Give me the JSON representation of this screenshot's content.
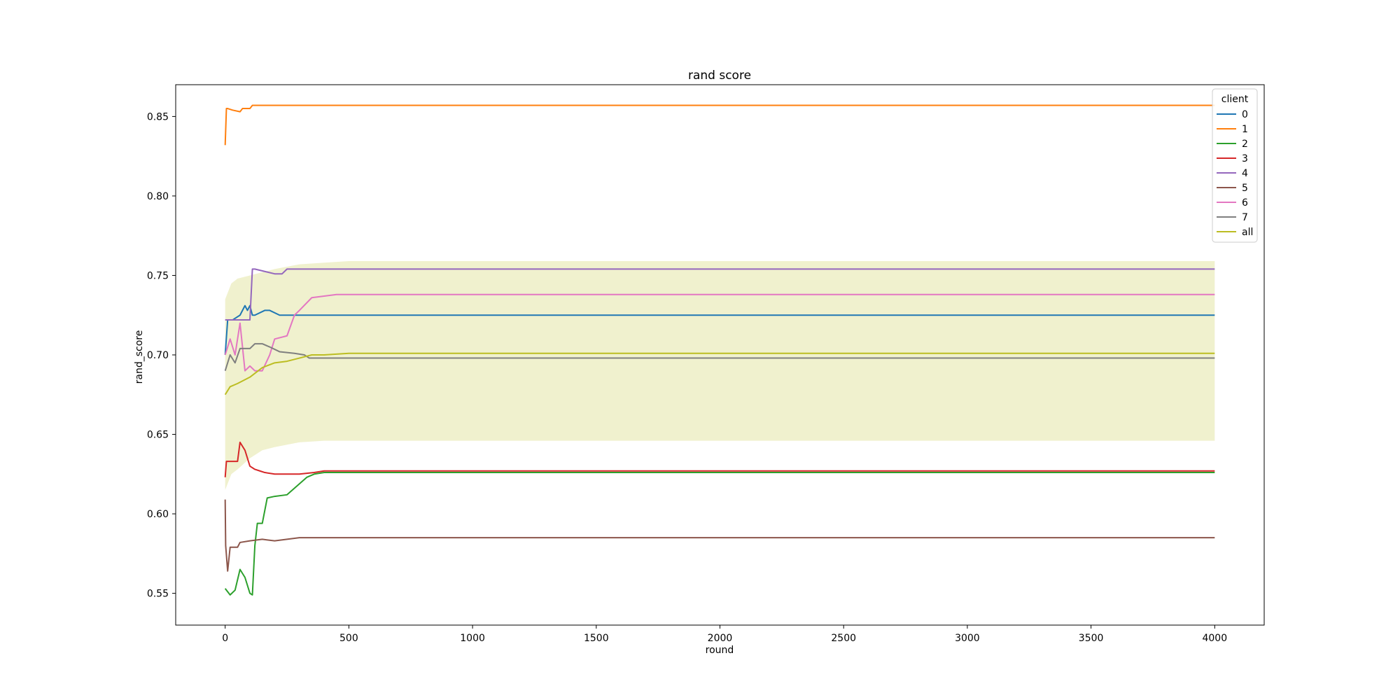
{
  "chart_data": {
    "type": "line",
    "title": "rand score",
    "xlabel": "round",
    "ylabel": "rand_score",
    "xlim": [
      -200,
      4200
    ],
    "ylim": [
      0.53,
      0.87
    ],
    "xticks": [
      0,
      500,
      1000,
      1500,
      2000,
      2500,
      3000,
      3500,
      4000
    ],
    "xtick_labels": [
      "0",
      "500",
      "1000",
      "1500",
      "2000",
      "2500",
      "3000",
      "3500",
      "4000"
    ],
    "yticks": [
      0.55,
      0.6,
      0.65,
      0.7,
      0.75,
      0.8,
      0.85
    ],
    "ytick_labels": [
      "0.55",
      "0.60",
      "0.65",
      "0.70",
      "0.75",
      "0.80",
      "0.85"
    ],
    "legend_title": "client",
    "legend_position": "top-right",
    "band": {
      "series": "all",
      "color": "#bcbd22",
      "opacity": 0.22,
      "x": [
        0,
        25,
        50,
        100,
        150,
        200,
        300,
        400,
        500,
        1000,
        2000,
        3000,
        4000
      ],
      "lower": [
        0.615,
        0.625,
        0.628,
        0.635,
        0.64,
        0.642,
        0.645,
        0.646,
        0.646,
        0.646,
        0.646,
        0.646,
        0.646
      ],
      "upper": [
        0.735,
        0.745,
        0.748,
        0.75,
        0.752,
        0.754,
        0.757,
        0.758,
        0.759,
        0.759,
        0.759,
        0.759,
        0.759
      ]
    },
    "series": [
      {
        "name": "0",
        "color": "#1f77b4",
        "x": [
          0,
          10,
          30,
          60,
          80,
          90,
          100,
          110,
          120,
          160,
          180,
          220,
          4000
        ],
        "y": [
          0.7,
          0.722,
          0.722,
          0.725,
          0.731,
          0.728,
          0.731,
          0.725,
          0.725,
          0.728,
          0.728,
          0.725,
          0.725
        ]
      },
      {
        "name": "1",
        "color": "#ff7f0e",
        "x": [
          0,
          5,
          10,
          30,
          60,
          70,
          100,
          110,
          4000
        ],
        "y": [
          0.832,
          0.855,
          0.855,
          0.854,
          0.853,
          0.855,
          0.855,
          0.857,
          0.857
        ]
      },
      {
        "name": "2",
        "color": "#2ca02c",
        "x": [
          0,
          20,
          40,
          60,
          80,
          100,
          110,
          120,
          130,
          150,
          170,
          200,
          250,
          330,
          360,
          400,
          4000
        ],
        "y": [
          0.553,
          0.549,
          0.552,
          0.565,
          0.56,
          0.55,
          0.549,
          0.58,
          0.594,
          0.594,
          0.61,
          0.611,
          0.612,
          0.623,
          0.625,
          0.626,
          0.626
        ]
      },
      {
        "name": "3",
        "color": "#d62728",
        "x": [
          0,
          5,
          50,
          60,
          80,
          100,
          120,
          140,
          160,
          200,
          300,
          360,
          400,
          4000
        ],
        "y": [
          0.623,
          0.633,
          0.633,
          0.645,
          0.64,
          0.63,
          0.628,
          0.627,
          0.626,
          0.625,
          0.625,
          0.626,
          0.627,
          0.627
        ]
      },
      {
        "name": "4",
        "color": "#9467bd",
        "x": [
          0,
          20,
          50,
          100,
          110,
          120,
          200,
          230,
          250,
          4000
        ],
        "y": [
          0.722,
          0.722,
          0.722,
          0.722,
          0.754,
          0.754,
          0.751,
          0.751,
          0.754,
          0.754
        ]
      },
      {
        "name": "5",
        "color": "#8c564b",
        "x": [
          0,
          2,
          10,
          20,
          50,
          60,
          100,
          150,
          200,
          300,
          4000
        ],
        "y": [
          0.609,
          0.58,
          0.564,
          0.579,
          0.579,
          0.582,
          0.583,
          0.584,
          0.583,
          0.585,
          0.585
        ]
      },
      {
        "name": "6",
        "color": "#e377c2",
        "x": [
          0,
          20,
          40,
          60,
          80,
          100,
          120,
          150,
          180,
          200,
          250,
          280,
          300,
          350,
          450,
          4000
        ],
        "y": [
          0.7,
          0.71,
          0.7,
          0.72,
          0.69,
          0.693,
          0.69,
          0.69,
          0.7,
          0.71,
          0.712,
          0.725,
          0.728,
          0.736,
          0.738,
          0.738
        ]
      },
      {
        "name": "7",
        "color": "#7f7f7f",
        "x": [
          0,
          20,
          40,
          60,
          100,
          120,
          150,
          180,
          220,
          280,
          320,
          340,
          4000
        ],
        "y": [
          0.69,
          0.7,
          0.695,
          0.704,
          0.704,
          0.707,
          0.707,
          0.705,
          0.702,
          0.701,
          0.7,
          0.698,
          0.698
        ]
      },
      {
        "name": "all",
        "color": "#bcbd22",
        "x": [
          0,
          20,
          50,
          100,
          150,
          200,
          250,
          300,
          350,
          400,
          500,
          4000
        ],
        "y": [
          0.675,
          0.68,
          0.682,
          0.686,
          0.692,
          0.695,
          0.696,
          0.698,
          0.7,
          0.7,
          0.701,
          0.701
        ]
      }
    ]
  }
}
